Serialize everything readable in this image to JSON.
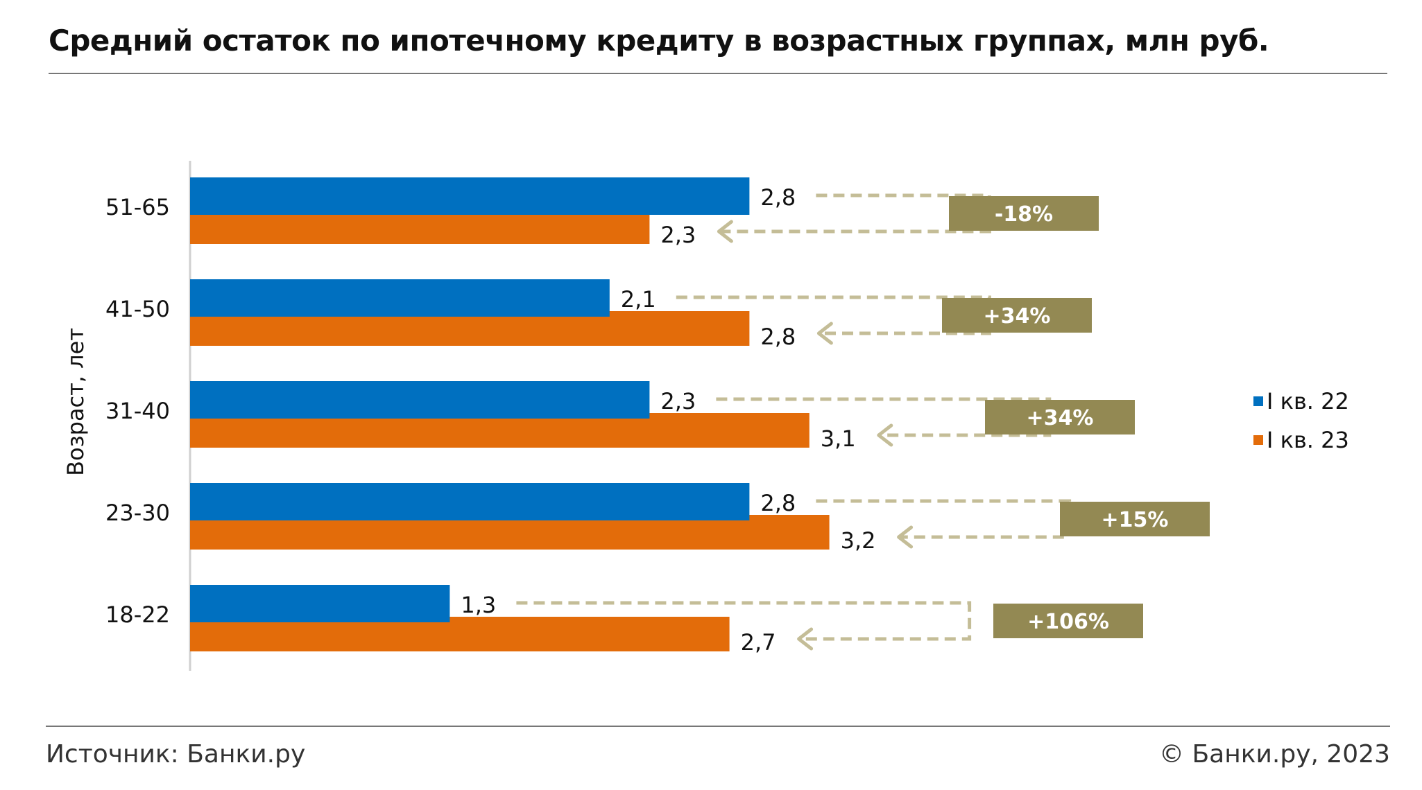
{
  "header": {
    "title": "Средний остаток по ипотечному кредиту в возрастных группах, млн руб."
  },
  "footer": {
    "source": "Источник: Банки.ру",
    "copyright": "© Банки.ру, 2023"
  },
  "colors": {
    "series_2022": "#0070c0",
    "series_2023": "#e36c0a",
    "badge": "#938953",
    "arrow": "#c4bd97",
    "axis": "#d0d0d0"
  },
  "chart_data": {
    "type": "bar",
    "orientation": "horizontal",
    "ylabel": "Возраст, лет",
    "categories": [
      "51-65",
      "41-50",
      "31-40",
      "23-30",
      "18-22"
    ],
    "series": [
      {
        "name": "I кв. 22",
        "values": [
          2.8,
          2.1,
          2.3,
          2.8,
          1.3
        ],
        "labels": [
          "2,8",
          "2,1",
          "2,3",
          "2,8",
          "1,3"
        ]
      },
      {
        "name": "I кв. 23",
        "values": [
          2.3,
          2.8,
          3.1,
          3.2,
          2.7
        ],
        "labels": [
          "2,3",
          "2,8",
          "3,1",
          "3,2",
          "2,7"
        ]
      }
    ],
    "changes": [
      "-18%",
      "+34%",
      "+34%",
      "+15%",
      "+106%"
    ],
    "xlim": [
      0,
      3.5
    ],
    "grid": false,
    "legend_position": "right"
  }
}
